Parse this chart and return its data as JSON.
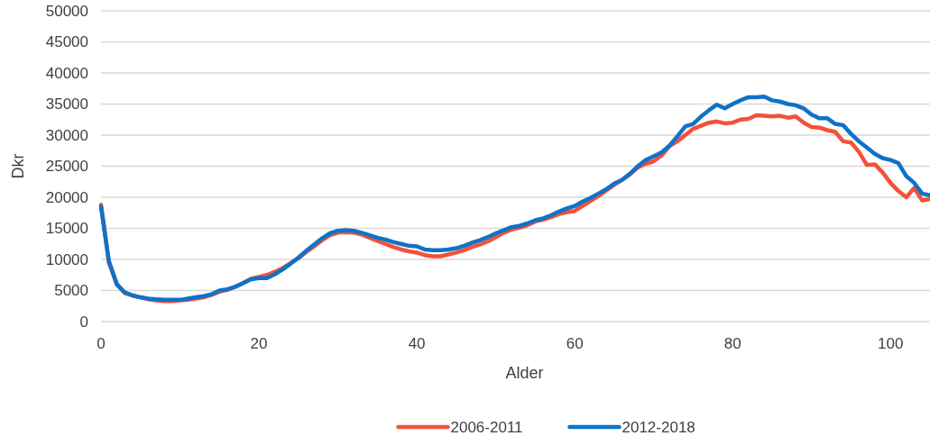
{
  "chart_data": {
    "type": "line",
    "xlabel": "Alder",
    "ylabel": "Dkr",
    "xlim": [
      0,
      105
    ],
    "xticks": [
      0,
      20,
      40,
      60,
      80,
      100
    ],
    "ylim": [
      0,
      50000
    ],
    "yticks": [
      0,
      5000,
      10000,
      15000,
      20000,
      25000,
      30000,
      35000,
      40000,
      45000,
      50000
    ],
    "grid": "y",
    "legend": "bottom",
    "marker": "none",
    "line_style": "solid",
    "x": [
      0,
      1,
      2,
      3,
      4,
      5,
      6,
      7,
      8,
      9,
      10,
      11,
      12,
      13,
      14,
      15,
      16,
      17,
      18,
      19,
      20,
      21,
      22,
      23,
      24,
      25,
      26,
      27,
      28,
      29,
      30,
      31,
      32,
      33,
      34,
      35,
      36,
      37,
      38,
      39,
      40,
      41,
      42,
      43,
      44,
      45,
      46,
      47,
      48,
      49,
      50,
      51,
      52,
      53,
      54,
      55,
      56,
      57,
      58,
      59,
      60,
      61,
      62,
      63,
      64,
      65,
      66,
      67,
      68,
      69,
      70,
      71,
      72,
      73,
      74,
      75,
      76,
      77,
      78,
      79,
      80,
      81,
      82,
      83,
      84,
      85,
      86,
      87,
      88,
      89,
      90,
      91,
      92,
      93,
      94,
      95,
      96,
      97,
      98,
      99,
      100,
      101,
      102,
      103,
      104,
      105
    ],
    "series": [
      {
        "name": "2006-2011",
        "color": "#f4513a",
        "values": [
          18800,
          9500,
          6000,
          4600,
          4200,
          3900,
          3600,
          3400,
          3300,
          3300,
          3400,
          3500,
          3700,
          3900,
          4300,
          4800,
          5100,
          5600,
          6200,
          6900,
          7200,
          7500,
          8000,
          8600,
          9400,
          10200,
          11200,
          12100,
          13100,
          13900,
          14300,
          14400,
          14300,
          14000,
          13500,
          13000,
          12500,
          12000,
          11600,
          11300,
          11100,
          10700,
          10500,
          10500,
          10800,
          11100,
          11500,
          12000,
          12400,
          12900,
          13600,
          14300,
          14800,
          15100,
          15500,
          16100,
          16400,
          16800,
          17300,
          17600,
          17800,
          18600,
          19400,
          20200,
          21100,
          22000,
          22800,
          23700,
          24800,
          25400,
          25800,
          26700,
          28200,
          29000,
          30000,
          31000,
          31500,
          32000,
          32200,
          31900,
          32000,
          32500,
          32600,
          33200,
          33100,
          33000,
          33100,
          32800,
          33000,
          32000,
          31300,
          31200,
          30800,
          30500,
          29000,
          28800,
          27300,
          25200,
          25300,
          24000,
          22300,
          21000,
          20000,
          21500,
          19500,
          19700
        ]
      },
      {
        "name": "2012-2018",
        "color": "#0f72c8",
        "values": [
          18500,
          9700,
          6000,
          4700,
          4200,
          3900,
          3700,
          3600,
          3500,
          3500,
          3500,
          3700,
          3900,
          4100,
          4400,
          5000,
          5200,
          5600,
          6200,
          6800,
          7000,
          7000,
          7600,
          8400,
          9300,
          10300,
          11400,
          12400,
          13400,
          14200,
          14600,
          14700,
          14600,
          14300,
          13900,
          13500,
          13200,
          12800,
          12500,
          12200,
          12100,
          11600,
          11500,
          11500,
          11600,
          11800,
          12200,
          12700,
          13100,
          13600,
          14200,
          14700,
          15200,
          15400,
          15800,
          16300,
          16600,
          17100,
          17700,
          18200,
          18600,
          19300,
          19900,
          20600,
          21300,
          22200,
          22800,
          23800,
          25000,
          26000,
          26600,
          27200,
          28300,
          29800,
          31400,
          31800,
          33000,
          34000,
          34900,
          34300,
          35000,
          35600,
          36100,
          36100,
          36200,
          35600,
          35400,
          35000,
          34800,
          34300,
          33300,
          32700,
          32700,
          31800,
          31600,
          30200,
          29000,
          28000,
          27000,
          26300,
          26000,
          25500,
          23400,
          22300,
          20600,
          20300
        ]
      }
    ]
  }
}
